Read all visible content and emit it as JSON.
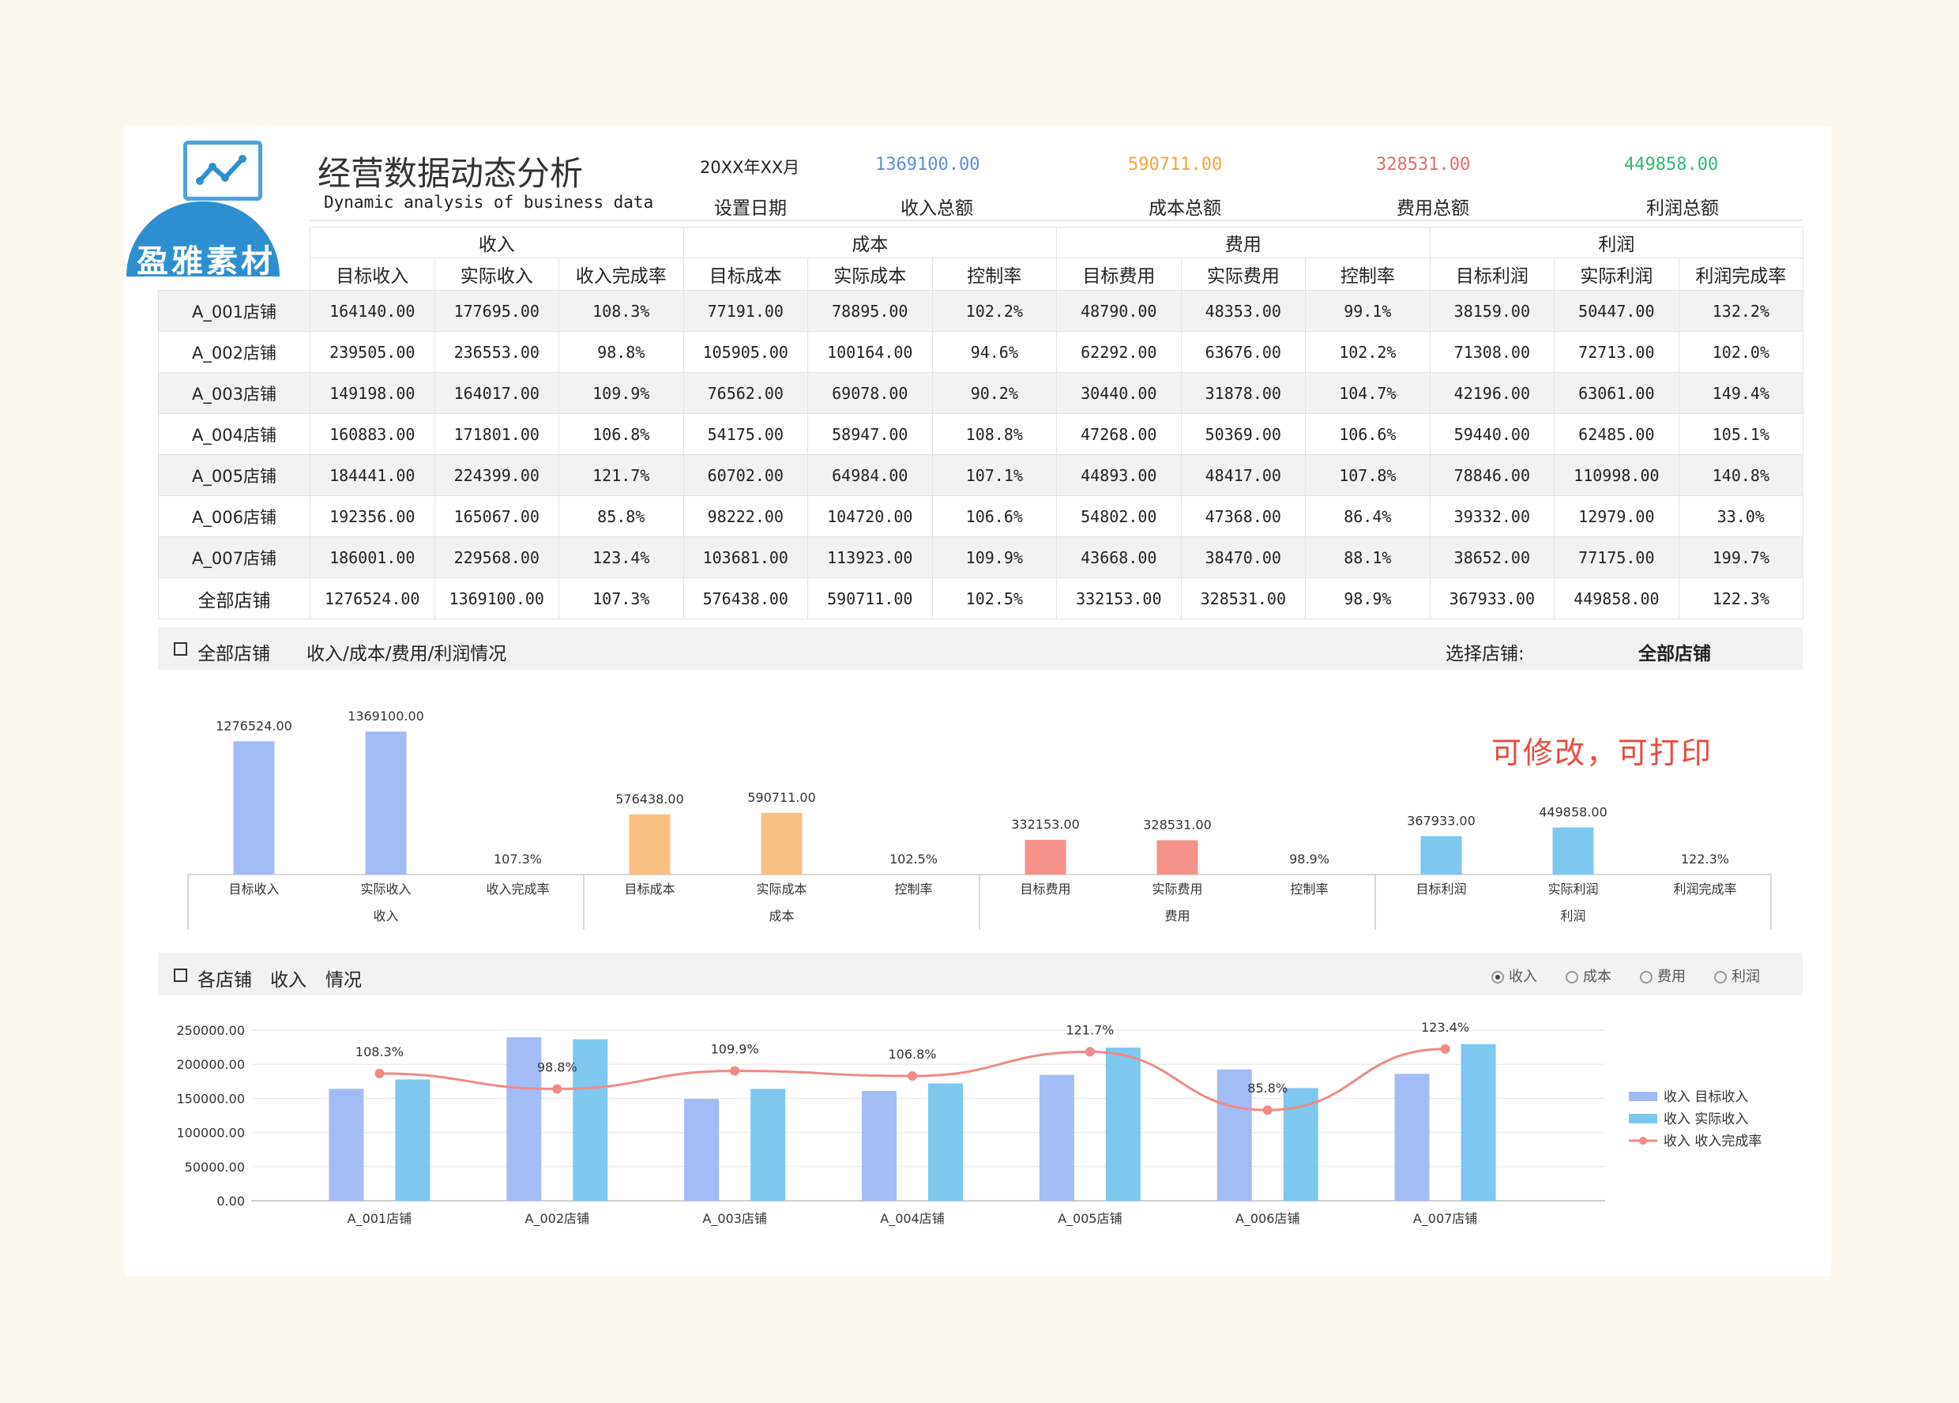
{
  "brand": {
    "name": "盈雅素材",
    "icon": "line-chart-icon"
  },
  "header": {
    "title": "经营数据动态分析",
    "subtitle": "Dynamic analysis of business data",
    "date": {
      "value": "20XX年XX月",
      "label": "设置日期"
    },
    "kpis": [
      {
        "value": "1369100.00",
        "label": "收入总额",
        "color": "#5b8fd8"
      },
      {
        "value": "590711.00",
        "label": "成本总额",
        "color": "#f3a43b"
      },
      {
        "value": "328531.00",
        "label": "费用总额",
        "color": "#e56b6b"
      },
      {
        "value": "449858.00",
        "label": "利润总额",
        "color": "#2eb872"
      }
    ]
  },
  "table": {
    "groups": [
      "收入",
      "成本",
      "费用",
      "利润"
    ],
    "columns": [
      "目标收入",
      "实际收入",
      "收入完成率",
      "目标成本",
      "实际成本",
      "控制率",
      "目标费用",
      "实际费用",
      "控制率",
      "目标利润",
      "实际利润",
      "利润完成率"
    ],
    "rows": [
      {
        "name": "A_001店铺",
        "cells": [
          "164140.00",
          "177695.00",
          "108.3%",
          "77191.00",
          "78895.00",
          "102.2%",
          "48790.00",
          "48353.00",
          "99.1%",
          "38159.00",
          "50447.00",
          "132.2%"
        ]
      },
      {
        "name": "A_002店铺",
        "cells": [
          "239505.00",
          "236553.00",
          "98.8%",
          "105905.00",
          "100164.00",
          "94.6%",
          "62292.00",
          "63676.00",
          "102.2%",
          "71308.00",
          "72713.00",
          "102.0%"
        ]
      },
      {
        "name": "A_003店铺",
        "cells": [
          "149198.00",
          "164017.00",
          "109.9%",
          "76562.00",
          "69078.00",
          "90.2%",
          "30440.00",
          "31878.00",
          "104.7%",
          "42196.00",
          "63061.00",
          "149.4%"
        ]
      },
      {
        "name": "A_004店铺",
        "cells": [
          "160883.00",
          "171801.00",
          "106.8%",
          "54175.00",
          "58947.00",
          "108.8%",
          "47268.00",
          "50369.00",
          "106.6%",
          "59440.00",
          "62485.00",
          "105.1%"
        ]
      },
      {
        "name": "A_005店铺",
        "cells": [
          "184441.00",
          "224399.00",
          "121.7%",
          "60702.00",
          "64984.00",
          "107.1%",
          "44893.00",
          "48417.00",
          "107.8%",
          "78846.00",
          "110998.00",
          "140.8%"
        ]
      },
      {
        "name": "A_006店铺",
        "cells": [
          "192356.00",
          "165067.00",
          "85.8%",
          "98222.00",
          "104720.00",
          "106.6%",
          "54802.00",
          "47368.00",
          "86.4%",
          "39332.00",
          "12979.00",
          "33.0%"
        ]
      },
      {
        "name": "A_007店铺",
        "cells": [
          "186001.00",
          "229568.00",
          "123.4%",
          "103681.00",
          "113923.00",
          "109.9%",
          "43668.00",
          "38470.00",
          "88.1%",
          "38652.00",
          "77175.00",
          "199.7%"
        ]
      },
      {
        "name": "全部店铺",
        "cells": [
          "1276524.00",
          "1369100.00",
          "107.3%",
          "576438.00",
          "590711.00",
          "102.5%",
          "332153.00",
          "328531.00",
          "98.9%",
          "367933.00",
          "449858.00",
          "122.3%"
        ]
      }
    ]
  },
  "section1": {
    "scope": "全部店铺",
    "title": "收入/成本/费用/利润情况",
    "select_label": "选择店铺:",
    "select_value": "全部店铺"
  },
  "note": "可修改，可打印",
  "chart_data": [
    {
      "type": "bar",
      "title": "",
      "categories": [
        "目标收入",
        "实际收入",
        "收入完成率",
        "目标成本",
        "实际成本",
        "控制率",
        "目标费用",
        "实际费用",
        "控制率",
        "目标利润",
        "实际利润",
        "利润完成率"
      ],
      "group_labels": [
        "收入",
        "成本",
        "费用",
        "利润"
      ],
      "values": [
        1276524.0,
        1369100.0,
        1.073,
        576438.0,
        590711.0,
        1.025,
        332153.0,
        328531.0,
        0.989,
        367933.0,
        449858.0,
        1.223
      ],
      "data_labels": [
        "1276524.00",
        "1369100.00",
        "107.3%",
        "576438.00",
        "590711.00",
        "102.5%",
        "332153.00",
        "328531.00",
        "98.9%",
        "367933.00",
        "449858.00",
        "122.3%"
      ],
      "colors": [
        "#a4bcf6",
        "#a4bcf6",
        "#a4bcf6",
        "#f9c083",
        "#f9c083",
        "#f9c083",
        "#f5938b",
        "#f5938b",
        "#f5938b",
        "#7ec7ef",
        "#7ec7ef",
        "#7ec7ef"
      ],
      "ylim": [
        0,
        1500000
      ]
    },
    {
      "type": "bar",
      "categories": [
        "A_001店铺",
        "A_002店铺",
        "A_003店铺",
        "A_004店铺",
        "A_005店铺",
        "A_006店铺",
        "A_007店铺"
      ],
      "series": [
        {
          "name": "收入 目标收入",
          "type": "bar",
          "color": "#a4bcf6",
          "values": [
            164140,
            239505,
            149198,
            160883,
            184441,
            192356,
            186001
          ]
        },
        {
          "name": "收入 实际收入",
          "type": "bar",
          "color": "#7ec7ef",
          "values": [
            177695,
            236553,
            164017,
            171801,
            224399,
            165067,
            229568
          ]
        },
        {
          "name": "收入 收入完成率",
          "type": "line",
          "color": "#ef8a87",
          "values": [
            1.083,
            0.988,
            1.099,
            1.068,
            1.217,
            0.858,
            1.234
          ],
          "labels": [
            "108.3%",
            "98.8%",
            "109.9%",
            "106.8%",
            "121.7%",
            "85.8%",
            "123.4%"
          ]
        }
      ],
      "y_ticks": [
        "250000.00",
        "200000.00",
        "150000.00",
        "100000.00",
        "50000.00",
        "0.00"
      ],
      "ylim": [
        0,
        250000
      ],
      "legend": "right"
    }
  ],
  "section2": {
    "scope": "各店铺",
    "metric": "收入",
    "suffix": "情况"
  },
  "radios": [
    {
      "label": "收入",
      "checked": true
    },
    {
      "label": "成本",
      "checked": false
    },
    {
      "label": "费用",
      "checked": false
    },
    {
      "label": "利润",
      "checked": false
    }
  ]
}
